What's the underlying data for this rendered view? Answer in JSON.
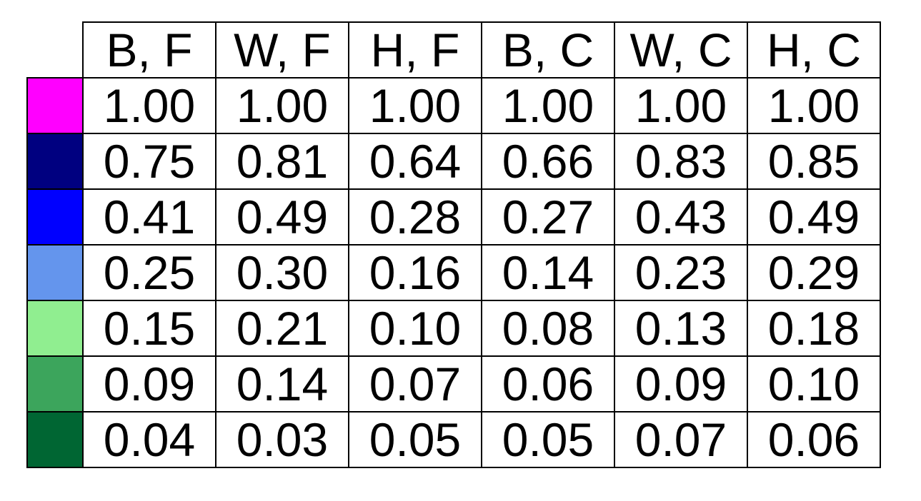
{
  "chart_data": {
    "type": "table",
    "columns": [
      "B, F",
      "W, F",
      "H, F",
      "B, C",
      "W, C",
      "H, C"
    ],
    "row_colors": [
      "#ff00ff",
      "#000080",
      "#0000ff",
      "#6495ed",
      "#90ee90",
      "#3ca55c",
      "#006633"
    ],
    "rows": [
      [
        "1.00",
        "1.00",
        "1.00",
        "1.00",
        "1.00",
        "1.00"
      ],
      [
        "0.75",
        "0.81",
        "0.64",
        "0.66",
        "0.83",
        "0.85"
      ],
      [
        "0.41",
        "0.49",
        "0.28",
        "0.27",
        "0.43",
        "0.49"
      ],
      [
        "0.25",
        "0.30",
        "0.16",
        "0.14",
        "0.23",
        "0.29"
      ],
      [
        "0.15",
        "0.21",
        "0.10",
        "0.08",
        "0.13",
        "0.18"
      ],
      [
        "0.09",
        "0.14",
        "0.07",
        "0.06",
        "0.09",
        "0.10"
      ],
      [
        "0.04",
        "0.03",
        "0.05",
        "0.05",
        "0.07",
        "0.06"
      ]
    ]
  }
}
